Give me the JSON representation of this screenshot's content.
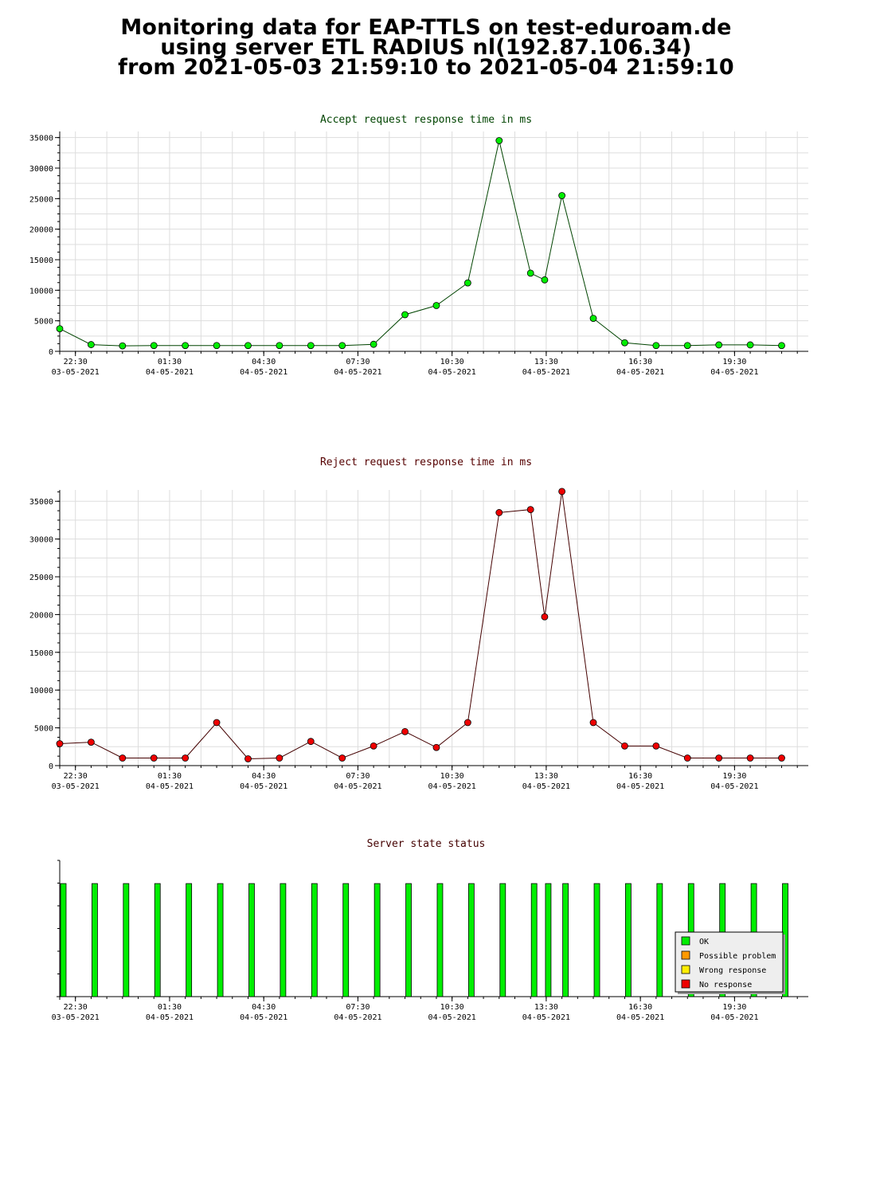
{
  "page_title": {
    "line1": "Monitoring data for EAP-TTLS on test-eduroam.de",
    "line2": "using server ETL RADIUS nl(192.87.106.34)",
    "line3": "from 2021-05-03 21:59:10 to 2021-05-04 21:59:10"
  },
  "colors": {
    "accept": "#00ee00",
    "accept_line": "#004400",
    "reject": "#ee0000",
    "reject_line": "#440000",
    "title_accept": "#004400",
    "title_reject": "#550000",
    "title_status": "#440000",
    "grid": "#dddddd"
  },
  "x_axis": {
    "range_hours": [
      22.0,
      45.85
    ],
    "ticks": [
      {
        "hour": 22.5,
        "time": "22:30",
        "date": "03-05-2021"
      },
      {
        "hour": 25.5,
        "time": "01:30",
        "date": "04-05-2021"
      },
      {
        "hour": 28.5,
        "time": "04:30",
        "date": "04-05-2021"
      },
      {
        "hour": 31.5,
        "time": "07:30",
        "date": "04-05-2021"
      },
      {
        "hour": 34.5,
        "time": "10:30",
        "date": "04-05-2021"
      },
      {
        "hour": 37.5,
        "time": "13:30",
        "date": "04-05-2021"
      },
      {
        "hour": 40.5,
        "time": "16:30",
        "date": "04-05-2021"
      },
      {
        "hour": 43.5,
        "time": "19:30",
        "date": "04-05-2021"
      }
    ]
  },
  "chart_data": [
    {
      "type": "line",
      "title": "Accept request response time in ms",
      "ylim": [
        0,
        36000
      ],
      "yticks": [
        0,
        5000,
        10000,
        15000,
        20000,
        25000,
        30000,
        35000
      ],
      "grid": true,
      "series": [
        {
          "x": [
            22.0,
            23.0,
            24.0,
            25.0,
            26.0,
            27.0,
            28.0,
            29.0,
            30.0,
            31.0,
            32.0,
            33.0,
            34.0,
            35.0,
            36.0,
            37.0,
            37.45,
            38.0,
            39.0,
            40.0,
            41.0,
            42.0,
            43.0,
            44.0,
            45.0
          ],
          "values": [
            3700,
            1100,
            900,
            950,
            950,
            950,
            950,
            950,
            950,
            950,
            1150,
            6000,
            7500,
            11200,
            34500,
            12800,
            11700,
            25500,
            5400,
            1400,
            950,
            950,
            1050,
            1050,
            950
          ]
        }
      ]
    },
    {
      "type": "line",
      "title": "Reject request response time in ms",
      "ylim": [
        0,
        36500
      ],
      "yticks": [
        0,
        5000,
        10000,
        15000,
        20000,
        25000,
        30000,
        35000
      ],
      "grid": true,
      "series": [
        {
          "x": [
            22.0,
            23.0,
            24.0,
            25.0,
            26.0,
            27.0,
            28.0,
            29.0,
            30.0,
            31.0,
            32.0,
            33.0,
            34.0,
            35.0,
            36.0,
            37.0,
            37.45,
            38.0,
            39.0,
            40.0,
            41.0,
            42.0,
            43.0,
            44.0,
            45.0
          ],
          "values": [
            2900,
            3100,
            1000,
            1000,
            1000,
            5700,
            900,
            1000,
            3200,
            1000,
            2600,
            4500,
            2400,
            5700,
            33500,
            33900,
            19700,
            36300,
            5700,
            2600,
            2600,
            1000,
            1000,
            1000,
            1000
          ]
        }
      ]
    },
    {
      "type": "bar",
      "title": "Server state status",
      "x": [
        22.0,
        23.0,
        24.0,
        25.0,
        26.0,
        27.0,
        28.0,
        29.0,
        30.0,
        31.0,
        32.0,
        33.0,
        34.0,
        35.0,
        36.0,
        37.0,
        37.45,
        38.0,
        39.0,
        40.0,
        41.0,
        42.0,
        43.0,
        44.0,
        45.0
      ],
      "states": [
        "OK",
        "OK",
        "OK",
        "OK",
        "OK",
        "OK",
        "OK",
        "OK",
        "OK",
        "OK",
        "OK",
        "OK",
        "OK",
        "OK",
        "OK",
        "OK",
        "OK",
        "OK",
        "OK",
        "OK",
        "OK",
        "OK",
        "OK",
        "OK",
        "OK"
      ],
      "level": 0.83,
      "legend": [
        {
          "label": "OK",
          "color": "#00ee00"
        },
        {
          "label": "Possible problem",
          "color": "#ff9900"
        },
        {
          "label": "Wrong response",
          "color": "#ffee00"
        },
        {
          "label": "No response",
          "color": "#ee0000"
        }
      ],
      "legend_position": "right"
    }
  ]
}
